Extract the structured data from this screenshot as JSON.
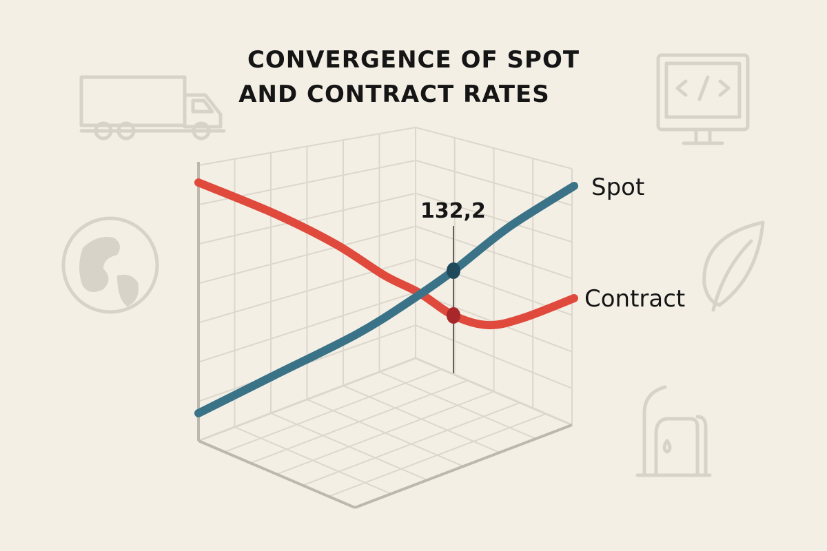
{
  "chart_data": {
    "type": "line",
    "title": "CONVERGENCE OF SPOT AND CONTRACT RATES",
    "title_lines": [
      "CONVERGENCE OF SPOT",
      "AND CONTRACT RATES"
    ],
    "style": "3d-perspective-grid",
    "grid": true,
    "legend": "inline-right",
    "xlabel": "",
    "ylabel": "",
    "series": [
      {
        "name": "Spot",
        "color": "#3a7388",
        "x": [
          0,
          2.2,
          4.6,
          6.2,
          7.4,
          9.0,
          10.9
        ],
        "values": [
          90.8,
          101.8,
          113.8,
          123.8,
          132.2,
          144.8,
          156.8
        ]
      },
      {
        "name": "Contract",
        "color": "#e04a3c",
        "x": [
          0,
          2.2,
          4.0,
          5.4,
          6.4,
          7.4,
          8.4,
          9.4,
          10.9
        ],
        "values": [
          157.8,
          148.8,
          139.8,
          130.8,
          125.8,
          119.2,
          116.4,
          118.4,
          124.2
        ]
      }
    ],
    "annotations": [
      {
        "text": "132,2",
        "x": 7.4,
        "series": "Spot",
        "marker_colors": [
          "#1f4a5c",
          "#a8272a"
        ]
      }
    ]
  },
  "decorative_icons": [
    "truck-icon",
    "monitor-code-icon",
    "globe-icon",
    "leaf-icon",
    "fuel-pump-icon"
  ],
  "colors": {
    "background": "#f4efe5",
    "grid": "#dcd7cc",
    "axis": "#bdb8ae",
    "icon": "#d8d3c8"
  }
}
